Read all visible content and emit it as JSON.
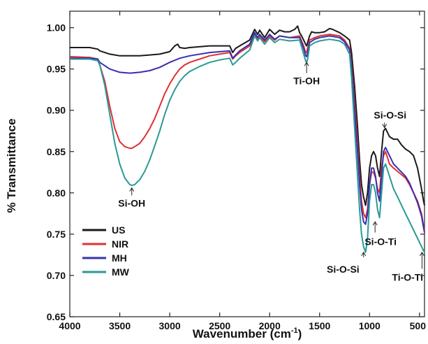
{
  "chart_data": {
    "type": "line",
    "xlabel": "Wavenumber (cm",
    "xlabel_sup": "-1",
    "xlabel_end": ")",
    "ylabel": "% Transmittance",
    "xlim": [
      4000,
      450
    ],
    "ylim": [
      0.65,
      1.02
    ],
    "x_ticks": [
      4000,
      3500,
      3000,
      2500,
      2000,
      1500,
      1000,
      500
    ],
    "y_ticks": [
      0.65,
      0.7,
      0.75,
      0.8,
      0.85,
      0.9,
      0.95,
      1.0
    ],
    "y_tick_labels": [
      "0.65",
      "0.70",
      "0.75",
      "0.80",
      "0.85",
      "0.90",
      "0.95",
      "1.00"
    ],
    "legend_position": "bottom-left",
    "series": [
      {
        "name": "US",
        "color": "#1a1a1a",
        "x": [
          4000,
          3800,
          3720,
          3700,
          3600,
          3500,
          3400,
          3300,
          3200,
          3100,
          3000,
          2950,
          2920,
          2900,
          2850,
          2800,
          2600,
          2400,
          2370,
          2340,
          2300,
          2200,
          2150,
          2120,
          2100,
          2050,
          2000,
          1950,
          1900,
          1850,
          1800,
          1750,
          1720,
          1700,
          1680,
          1660,
          1640,
          1630,
          1620,
          1600,
          1580,
          1550,
          1500,
          1450,
          1400,
          1370,
          1300,
          1250,
          1200,
          1180,
          1150,
          1120,
          1100,
          1080,
          1060,
          1040,
          1020,
          1000,
          980,
          960,
          940,
          920,
          900,
          880,
          860,
          840,
          800,
          760,
          720,
          680,
          640,
          600,
          560,
          520,
          480,
          460,
          450
        ],
        "y": [
          0.976,
          0.976,
          0.974,
          0.972,
          0.968,
          0.966,
          0.966,
          0.966,
          0.967,
          0.968,
          0.971,
          0.978,
          0.98,
          0.976,
          0.975,
          0.976,
          0.978,
          0.978,
          0.97,
          0.975,
          0.978,
          0.985,
          0.998,
          0.992,
          0.997,
          0.988,
          0.998,
          0.992,
          0.997,
          0.995,
          0.995,
          0.998,
          1.002,
          0.994,
          0.99,
          0.985,
          0.98,
          0.978,
          0.982,
          0.99,
          0.995,
          0.994,
          0.994,
          0.995,
          0.999,
          0.998,
          0.994,
          0.99,
          0.985,
          0.97,
          0.93,
          0.88,
          0.84,
          0.81,
          0.795,
          0.785,
          0.8,
          0.83,
          0.845,
          0.85,
          0.845,
          0.83,
          0.82,
          0.85,
          0.875,
          0.878,
          0.868,
          0.865,
          0.865,
          0.858,
          0.853,
          0.85,
          0.845,
          0.83,
          0.805,
          0.79,
          0.785
        ]
      },
      {
        "name": "NIR",
        "color": "#e03030",
        "x": [
          4000,
          3800,
          3720,
          3700,
          3650,
          3600,
          3550,
          3500,
          3450,
          3400,
          3380,
          3350,
          3300,
          3250,
          3200,
          3150,
          3100,
          3050,
          3000,
          2950,
          2900,
          2850,
          2800,
          2700,
          2600,
          2500,
          2400,
          2370,
          2340,
          2300,
          2200,
          2150,
          2120,
          2100,
          2050,
          2000,
          1950,
          1900,
          1800,
          1700,
          1660,
          1640,
          1630,
          1620,
          1600,
          1550,
          1500,
          1400,
          1300,
          1250,
          1200,
          1180,
          1150,
          1120,
          1100,
          1080,
          1060,
          1040,
          1020,
          1000,
          980,
          960,
          940,
          920,
          900,
          880,
          860,
          840,
          800,
          760,
          720,
          680,
          640,
          600,
          560,
          520,
          480,
          460,
          450
        ],
        "y": [
          0.965,
          0.964,
          0.962,
          0.955,
          0.935,
          0.905,
          0.878,
          0.862,
          0.856,
          0.854,
          0.854,
          0.856,
          0.86,
          0.868,
          0.878,
          0.89,
          0.905,
          0.92,
          0.932,
          0.942,
          0.95,
          0.955,
          0.958,
          0.962,
          0.966,
          0.968,
          0.97,
          0.962,
          0.966,
          0.97,
          0.978,
          0.992,
          0.986,
          0.99,
          0.983,
          0.99,
          0.985,
          0.99,
          0.988,
          0.99,
          0.978,
          0.97,
          0.97,
          0.975,
          0.985,
          0.988,
          0.99,
          0.992,
          0.99,
          0.985,
          0.975,
          0.955,
          0.91,
          0.86,
          0.82,
          0.79,
          0.775,
          0.77,
          0.78,
          0.81,
          0.825,
          0.825,
          0.818,
          0.805,
          0.8,
          0.83,
          0.845,
          0.85,
          0.835,
          0.83,
          0.826,
          0.822,
          0.818,
          0.81,
          0.8,
          0.79,
          0.775,
          0.76,
          0.755
        ]
      },
      {
        "name": "MH",
        "color": "#3a2fb0",
        "x": [
          4000,
          3800,
          3720,
          3700,
          3600,
          3500,
          3400,
          3300,
          3200,
          3100,
          3000,
          2900,
          2800,
          2600,
          2400,
          2370,
          2340,
          2300,
          2200,
          2150,
          2120,
          2100,
          2050,
          2000,
          1950,
          1900,
          1800,
          1700,
          1660,
          1640,
          1630,
          1620,
          1600,
          1550,
          1500,
          1400,
          1300,
          1250,
          1200,
          1180,
          1150,
          1120,
          1100,
          1080,
          1060,
          1040,
          1020,
          1000,
          980,
          960,
          940,
          920,
          900,
          880,
          860,
          840,
          800,
          760,
          720,
          680,
          640,
          600,
          560,
          520,
          480,
          460,
          450
        ],
        "y": [
          0.963,
          0.963,
          0.962,
          0.958,
          0.95,
          0.946,
          0.945,
          0.946,
          0.948,
          0.952,
          0.958,
          0.963,
          0.966,
          0.97,
          0.972,
          0.963,
          0.967,
          0.972,
          0.98,
          0.994,
          0.988,
          0.992,
          0.985,
          0.992,
          0.986,
          0.99,
          0.988,
          0.988,
          0.975,
          0.966,
          0.965,
          0.97,
          0.982,
          0.986,
          0.988,
          0.99,
          0.988,
          0.983,
          0.973,
          0.95,
          0.9,
          0.85,
          0.81,
          0.78,
          0.765,
          0.762,
          0.775,
          0.81,
          0.83,
          0.83,
          0.82,
          0.8,
          0.79,
          0.82,
          0.85,
          0.855,
          0.845,
          0.835,
          0.83,
          0.825,
          0.82,
          0.812,
          0.8,
          0.788,
          0.772,
          0.758,
          0.752
        ]
      },
      {
        "name": "MW",
        "color": "#2a9a96",
        "x": [
          4000,
          3800,
          3720,
          3700,
          3650,
          3600,
          3550,
          3500,
          3450,
          3400,
          3380,
          3350,
          3300,
          3250,
          3200,
          3150,
          3100,
          3050,
          3000,
          2950,
          2900,
          2850,
          2800,
          2700,
          2600,
          2500,
          2400,
          2370,
          2340,
          2300,
          2200,
          2150,
          2120,
          2100,
          2050,
          2000,
          1950,
          1900,
          1800,
          1700,
          1660,
          1640,
          1630,
          1620,
          1600,
          1550,
          1500,
          1400,
          1300,
          1250,
          1200,
          1180,
          1150,
          1120,
          1100,
          1080,
          1060,
          1040,
          1020,
          1000,
          980,
          960,
          940,
          920,
          900,
          880,
          860,
          840,
          800,
          760,
          720,
          680,
          640,
          600,
          560,
          520,
          480,
          460,
          450
        ],
        "y": [
          0.962,
          0.962,
          0.96,
          0.955,
          0.93,
          0.895,
          0.86,
          0.835,
          0.818,
          0.81,
          0.809,
          0.81,
          0.816,
          0.826,
          0.84,
          0.857,
          0.875,
          0.895,
          0.912,
          0.925,
          0.935,
          0.942,
          0.947,
          0.953,
          0.958,
          0.961,
          0.963,
          0.955,
          0.958,
          0.963,
          0.973,
          0.99,
          0.984,
          0.988,
          0.98,
          0.988,
          0.982,
          0.986,
          0.984,
          0.985,
          0.968,
          0.96,
          0.958,
          0.962,
          0.978,
          0.982,
          0.984,
          0.986,
          0.984,
          0.98,
          0.968,
          0.94,
          0.88,
          0.82,
          0.78,
          0.75,
          0.735,
          0.728,
          0.745,
          0.79,
          0.81,
          0.81,
          0.8,
          0.78,
          0.77,
          0.8,
          0.83,
          0.835,
          0.82,
          0.805,
          0.795,
          0.785,
          0.775,
          0.765,
          0.755,
          0.745,
          0.735,
          0.73,
          0.728
        ]
      }
    ],
    "annotations": [
      {
        "text": "Si-OH",
        "x": 3380,
        "y_tip": 0.806,
        "y_tail": 0.797
      },
      {
        "text": "Ti-OH",
        "x": 1630,
        "y_tip": 0.958,
        "y_tail": 0.945
      },
      {
        "text": "Si-O-Si",
        "x": 850,
        "y_tip": 0.879,
        "y_tail": 0.885,
        "side": "above"
      },
      {
        "text": "Si-O-Si",
        "x": 1060,
        "y_tip": 0.728,
        "y_tail": 0.722,
        "side": "left"
      },
      {
        "text": "Si-O-Ti",
        "x": 945,
        "y_tip": 0.765,
        "y_tail": 0.752,
        "side": "below"
      },
      {
        "text": "Ti-O-Ti",
        "x": 475,
        "y_tip": 0.728,
        "y_tail": 0.708,
        "side": "below"
      }
    ]
  }
}
